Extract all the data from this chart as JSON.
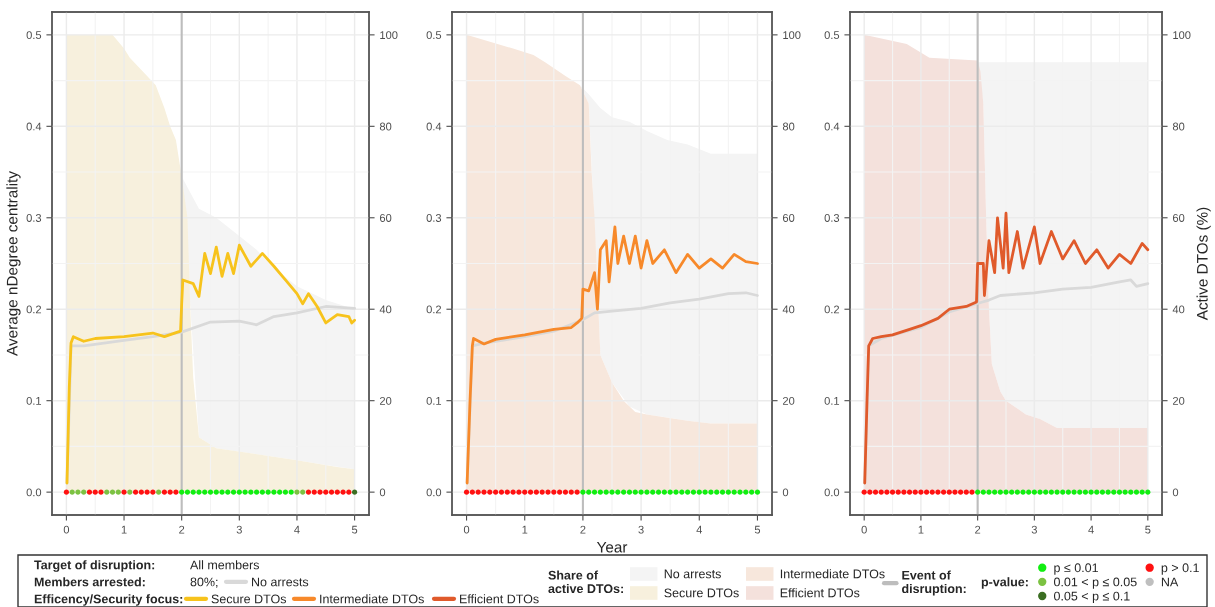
{
  "chart_data": [
    {
      "type": "line",
      "ylabel": "Average nDegree centrality",
      "xlim": [
        -0.25,
        5.25
      ],
      "ylim": [
        -0.025,
        0.525
      ],
      "y2lim": [
        -5,
        105
      ],
      "xticks": [
        0,
        1,
        2,
        3,
        4,
        5
      ],
      "yticks": [
        {
          "value": 0,
          "label": "0.0"
        },
        {
          "value": 0.1,
          "label": "0.1"
        },
        {
          "value": 0.2,
          "label": "0.2"
        },
        {
          "value": 0.3,
          "label": "0.3"
        },
        {
          "value": 0.4,
          "label": "0.4"
        },
        {
          "value": 0.5,
          "label": "0.5"
        }
      ],
      "y2ticks": [
        0,
        20,
        40,
        60,
        80,
        100
      ],
      "grid": true,
      "legend": "bottom",
      "ref_lines": [
        {
          "axis": "x",
          "value": 2,
          "label": "Event of\ndisruption:",
          "color": "#bdbdbd"
        }
      ],
      "series": [
        {
          "name": "No arrests",
          "type": "area",
          "axis": "y2",
          "color": "#f4f4f4",
          "x": [
            0,
            1.0,
            1.1,
            1.4,
            1.55,
            1.7,
            1.8,
            1.9,
            1.95,
            2.0,
            2.3,
            2.6,
            3.0,
            3.3,
            3.6,
            4.0,
            4.5,
            5.0
          ],
          "values": [
            100,
            97,
            95,
            91,
            89,
            84,
            80,
            77,
            73,
            69,
            62,
            60,
            56,
            53,
            49,
            45,
            42,
            40
          ]
        },
        {
          "name": "Secure DTOs",
          "type": "area",
          "axis": "y2",
          "color": "#f7f0dd",
          "x": [
            0,
            0.8,
            1.0,
            1.1,
            1.4,
            1.55,
            1.7,
            1.8,
            1.9,
            1.95,
            2.0,
            2.1,
            2.15,
            2.2,
            2.3,
            2.6,
            4.0,
            4.7,
            5.0
          ],
          "values": [
            100,
            100,
            97,
            95,
            91,
            89,
            84,
            80,
            77,
            73,
            69,
            60,
            40,
            25,
            12,
            9.6,
            7,
            5.5,
            5
          ]
        },
        {
          "name": "No arrests",
          "type": "line",
          "color": "#d9d9d9",
          "x": [
            0.01,
            0.08,
            0.3,
            1.0,
            1.5,
            2.0,
            2.5,
            3.0,
            3.3,
            3.6,
            4.0,
            4.5,
            5.0
          ],
          "values": [
            0.01,
            0.16,
            0.16,
            0.166,
            0.17,
            0.175,
            0.186,
            0.187,
            0.183,
            0.192,
            0.196,
            0.203,
            0.201
          ]
        },
        {
          "name": "Secure DTOs",
          "type": "line",
          "color": "#f7c31c",
          "x": [
            0.01,
            0.05,
            0.08,
            0.12,
            0.3,
            0.5,
            1.0,
            1.5,
            1.7,
            1.98,
            2.0,
            2.02,
            2.2,
            2.3,
            2.4,
            2.5,
            2.6,
            2.7,
            2.8,
            2.9,
            3.0,
            3.2,
            3.4,
            3.6,
            3.8,
            4.0,
            4.1,
            4.2,
            4.35,
            4.5,
            4.7,
            4.9,
            4.95,
            5.0
          ],
          "values": [
            0.01,
            0.115,
            0.163,
            0.17,
            0.165,
            0.168,
            0.17,
            0.174,
            0.17,
            0.176,
            0.206,
            0.232,
            0.228,
            0.214,
            0.261,
            0.239,
            0.268,
            0.236,
            0.261,
            0.239,
            0.27,
            0.247,
            0.261,
            0.247,
            0.232,
            0.217,
            0.206,
            0.217,
            0.203,
            0.185,
            0.194,
            0.192,
            0.185,
            0.188
          ]
        },
        {
          "name": "p ≤ 0.01",
          "type": "scatter",
          "color": "#11ee11",
          "x": [
            2.0,
            2.1,
            2.2,
            2.3,
            2.4,
            2.5,
            2.6,
            2.7,
            2.8,
            2.9,
            3.0,
            3.1,
            3.2,
            3.3,
            3.4,
            3.5,
            3.6,
            3.7,
            3.8,
            3.9
          ],
          "values": [
            0,
            0,
            0,
            0,
            0,
            0,
            0,
            0,
            0,
            0,
            0,
            0,
            0,
            0,
            0,
            0,
            0,
            0,
            0,
            0
          ]
        },
        {
          "name": "0.01 < p ≤ 0.05",
          "type": "scatter",
          "color": "#7cc242",
          "x": [
            0.1,
            0.2,
            0.3,
            0.7,
            0.8,
            0.9,
            1.1,
            1.6,
            4.0,
            4.1
          ],
          "values": [
            0,
            0,
            0,
            0,
            0,
            0,
            0,
            0,
            0,
            0
          ]
        },
        {
          "name": "0.05 < p ≤ 0.1",
          "type": "scatter",
          "color": "#3b6e22",
          "x": [
            5.0
          ],
          "values": [
            0
          ]
        },
        {
          "name": "p > 0.1",
          "type": "scatter",
          "color": "#ff1111",
          "x": [
            0.0,
            0.4,
            0.5,
            0.6,
            1.0,
            1.2,
            1.3,
            1.4,
            1.5,
            1.7,
            1.8,
            1.9,
            4.2,
            4.3,
            4.4,
            4.5,
            4.6,
            4.7,
            4.8,
            4.9
          ],
          "values": [
            0,
            0,
            0,
            0,
            0,
            0,
            0,
            0,
            0,
            0,
            0,
            0,
            0,
            0,
            0,
            0,
            0,
            0,
            0,
            0
          ]
        },
        {
          "name": "NA",
          "type": "scatter",
          "color": "#bfbfbf"
        }
      ]
    },
    {
      "type": "line",
      "xlabel": "Year",
      "xlim": [
        -0.25,
        5.25
      ],
      "ylim": [
        -0.025,
        0.525
      ],
      "y2lim": [
        -5,
        105
      ],
      "xticks": [
        0,
        1,
        2,
        3,
        4,
        5
      ],
      "yticks": [
        {
          "value": 0,
          "label": "0.0"
        },
        {
          "value": 0.1,
          "label": "0.1"
        },
        {
          "value": 0.2,
          "label": "0.2"
        },
        {
          "value": 0.3,
          "label": "0.3"
        },
        {
          "value": 0.4,
          "label": "0.4"
        },
        {
          "value": 0.5,
          "label": "0.5"
        }
      ],
      "y2ticks": [
        0,
        20,
        40,
        60,
        80,
        100
      ],
      "grid": true,
      "ref_lines": [
        {
          "axis": "x",
          "value": 2,
          "color": "#bdbdbd"
        }
      ],
      "series": [
        {
          "type": "area",
          "axis": "y2",
          "color": "#f4f4f4",
          "x": [
            0,
            0.8,
            1.15,
            1.35,
            1.7,
            1.95,
            2.1,
            2.3,
            2.5,
            2.8,
            3.1,
            3.45,
            3.8,
            4.2,
            5.0
          ],
          "values": [
            100,
            97,
            95.6,
            94,
            91,
            89,
            87,
            84,
            82,
            81,
            79,
            77,
            76,
            74,
            74
          ]
        },
        {
          "name": "Intermediate DTOs",
          "type": "area",
          "axis": "y2",
          "color": "#f7e7dc",
          "x": [
            0,
            0.8,
            1.15,
            1.35,
            1.7,
            1.95,
            2.1,
            2.15,
            2.2,
            2.3,
            2.5,
            2.7,
            2.9,
            3.1,
            3.8,
            4.2,
            5.0
          ],
          "values": [
            100,
            97,
            95.6,
            94,
            91,
            89,
            85,
            70,
            60,
            30,
            24,
            20,
            17.5,
            17,
            15.6,
            15,
            15
          ]
        },
        {
          "type": "line",
          "color": "#d9d9d9",
          "x": [
            0.01,
            0.1,
            0.3,
            1.0,
            1.5,
            1.98,
            2.2,
            2.5,
            3.0,
            3.5,
            4.0,
            4.5,
            4.8,
            5.0
          ],
          "values": [
            0.01,
            0.16,
            0.163,
            0.17,
            0.176,
            0.188,
            0.196,
            0.198,
            0.201,
            0.207,
            0.211,
            0.217,
            0.218,
            0.215
          ]
        },
        {
          "name": "Intermediate DTOs",
          "type": "line",
          "color": "#f7892a",
          "x": [
            0.01,
            0.06,
            0.1,
            0.12,
            0.3,
            0.5,
            1.0,
            1.5,
            1.8,
            1.9,
            1.98,
            2.0,
            2.1,
            2.2,
            2.25,
            2.3,
            2.4,
            2.45,
            2.55,
            2.6,
            2.7,
            2.8,
            2.9,
            3.0,
            3.1,
            3.2,
            3.4,
            3.6,
            3.8,
            4.0,
            4.2,
            4.4,
            4.6,
            4.8,
            5.0
          ],
          "values": [
            0.01,
            0.1,
            0.16,
            0.168,
            0.162,
            0.167,
            0.172,
            0.178,
            0.18,
            0.185,
            0.19,
            0.222,
            0.22,
            0.24,
            0.2,
            0.265,
            0.275,
            0.23,
            0.29,
            0.25,
            0.28,
            0.25,
            0.28,
            0.245,
            0.275,
            0.25,
            0.265,
            0.24,
            0.26,
            0.245,
            0.255,
            0.245,
            0.26,
            0.252,
            0.25
          ]
        },
        {
          "type": "scatter",
          "color": "#11ee11",
          "x": [
            2.0,
            2.1,
            2.2,
            2.3,
            2.4,
            2.5,
            2.6,
            2.7,
            2.8,
            2.9,
            3.0,
            3.1,
            3.2,
            3.3,
            3.4,
            3.5,
            3.6,
            3.7,
            3.8,
            3.9,
            4.0,
            4.1,
            4.2,
            4.3,
            4.4,
            4.5,
            4.6,
            4.7,
            4.8,
            4.9,
            5.0
          ],
          "values": [
            0,
            0,
            0,
            0,
            0,
            0,
            0,
            0,
            0,
            0,
            0,
            0,
            0,
            0,
            0,
            0,
            0,
            0,
            0,
            0,
            0,
            0,
            0,
            0,
            0,
            0,
            0,
            0,
            0,
            0,
            0
          ]
        },
        {
          "type": "scatter",
          "color": "#ff1111",
          "x": [
            0.0,
            0.1,
            0.2,
            0.3,
            0.4,
            0.5,
            0.6,
            0.7,
            0.8,
            0.9,
            1.0,
            1.1,
            1.2,
            1.3,
            1.4,
            1.5,
            1.6,
            1.7,
            1.8,
            1.9
          ],
          "values": [
            0,
            0,
            0,
            0,
            0,
            0,
            0,
            0,
            0,
            0,
            0,
            0,
            0,
            0,
            0,
            0,
            0,
            0,
            0,
            0
          ]
        }
      ]
    },
    {
      "type": "line",
      "y2label": "Active DTOs (%)",
      "xlim": [
        -0.25,
        5.25
      ],
      "ylim": [
        -0.025,
        0.525
      ],
      "y2lim": [
        -5,
        105
      ],
      "xticks": [
        0,
        1,
        2,
        3,
        4,
        5
      ],
      "yticks": [
        {
          "value": 0,
          "label": "0.0"
        },
        {
          "value": 0.1,
          "label": "0.1"
        },
        {
          "value": 0.2,
          "label": "0.2"
        },
        {
          "value": 0.3,
          "label": "0.3"
        },
        {
          "value": 0.4,
          "label": "0.4"
        },
        {
          "value": 0.5,
          "label": "0.5"
        }
      ],
      "y2ticks": [
        0,
        20,
        40,
        60,
        80,
        100
      ],
      "grid": true,
      "ref_lines": [
        {
          "axis": "x",
          "value": 2,
          "color": "#bdbdbd"
        }
      ],
      "series": [
        {
          "type": "area",
          "axis": "y2",
          "color": "#f4f4f4",
          "x": [
            0,
            0.75,
            1.15,
            2.0,
            2.1,
            2.15,
            2.2,
            2.25,
            2.4,
            2.5,
            2.85,
            3.1,
            3.4,
            5.0
          ],
          "values": [
            100,
            98,
            95,
            94,
            94,
            94,
            94,
            94,
            94,
            94,
            94,
            94,
            94,
            94
          ]
        },
        {
          "name": "Efficient DTOs",
          "type": "area",
          "axis": "y2",
          "color": "#f4e1dc",
          "x": [
            0,
            0.75,
            1.15,
            2.0,
            2.05,
            2.1,
            2.15,
            2.2,
            2.25,
            2.4,
            2.5,
            2.85,
            3.1,
            3.4,
            5.0
          ],
          "values": [
            100,
            98,
            95,
            94.4,
            92,
            85,
            60,
            40,
            28,
            22,
            20,
            17,
            16,
            14,
            14
          ]
        },
        {
          "type": "line",
          "color": "#d9d9d9",
          "x": [
            0.01,
            0.08,
            0.3,
            1.0,
            1.5,
            1.98,
            2.2,
            2.4,
            3.0,
            3.5,
            4.0,
            4.5,
            4.7,
            4.8,
            5.0
          ],
          "values": [
            0.01,
            0.16,
            0.168,
            0.18,
            0.197,
            0.206,
            0.21,
            0.215,
            0.218,
            0.222,
            0.224,
            0.23,
            0.232,
            0.225,
            0.228
          ]
        },
        {
          "name": "Efficient DTOs",
          "type": "line",
          "color": "#e05a2b",
          "x": [
            0.01,
            0.05,
            0.08,
            0.15,
            0.3,
            0.5,
            0.8,
            1.0,
            1.3,
            1.5,
            1.8,
            1.98,
            2.0,
            2.1,
            2.12,
            2.2,
            2.3,
            2.35,
            2.45,
            2.5,
            2.55,
            2.7,
            2.8,
            3.0,
            3.1,
            3.3,
            3.5,
            3.7,
            3.9,
            4.1,
            4.3,
            4.5,
            4.7,
            4.9,
            5.0
          ],
          "values": [
            0.01,
            0.1,
            0.16,
            0.168,
            0.17,
            0.172,
            0.178,
            0.182,
            0.19,
            0.2,
            0.203,
            0.208,
            0.25,
            0.25,
            0.215,
            0.275,
            0.24,
            0.3,
            0.245,
            0.305,
            0.24,
            0.285,
            0.245,
            0.29,
            0.25,
            0.285,
            0.255,
            0.275,
            0.25,
            0.265,
            0.245,
            0.26,
            0.25,
            0.272,
            0.265
          ]
        },
        {
          "type": "scatter",
          "color": "#11ee11",
          "x": [
            2.0,
            2.1,
            2.2,
            2.3,
            2.4,
            2.5,
            2.6,
            2.7,
            2.8,
            2.9,
            3.0,
            3.1,
            3.2,
            3.3,
            3.4,
            3.5,
            3.6,
            3.7,
            3.8,
            3.9,
            4.0,
            4.1,
            4.2,
            4.3,
            4.4,
            4.5,
            4.6,
            4.7,
            4.8,
            4.9,
            5.0
          ],
          "values": [
            0,
            0,
            0,
            0,
            0,
            0,
            0,
            0,
            0,
            0,
            0,
            0,
            0,
            0,
            0,
            0,
            0,
            0,
            0,
            0,
            0,
            0,
            0,
            0,
            0,
            0,
            0,
            0,
            0,
            0,
            0
          ]
        },
        {
          "type": "scatter",
          "color": "#ff1111",
          "x": [
            0.0,
            0.1,
            0.2,
            0.3,
            0.4,
            0.5,
            0.6,
            0.7,
            0.8,
            0.9,
            1.0,
            1.1,
            1.2,
            1.3,
            1.4,
            1.5,
            1.6,
            1.7,
            1.8,
            1.9
          ],
          "values": [
            0,
            0,
            0,
            0,
            0,
            0,
            0,
            0,
            0,
            0,
            0,
            0,
            0,
            0,
            0,
            0,
            0,
            0,
            0,
            0
          ]
        }
      ]
    },
    {
      "type": "other",
      "annotations": [
        "Target of disruption:",
        "All members",
        "Members arrested:",
        "80%;",
        "Efficency/Security focus:",
        "Share of\nactive DTOs:",
        "p-value:"
      ]
    }
  ]
}
